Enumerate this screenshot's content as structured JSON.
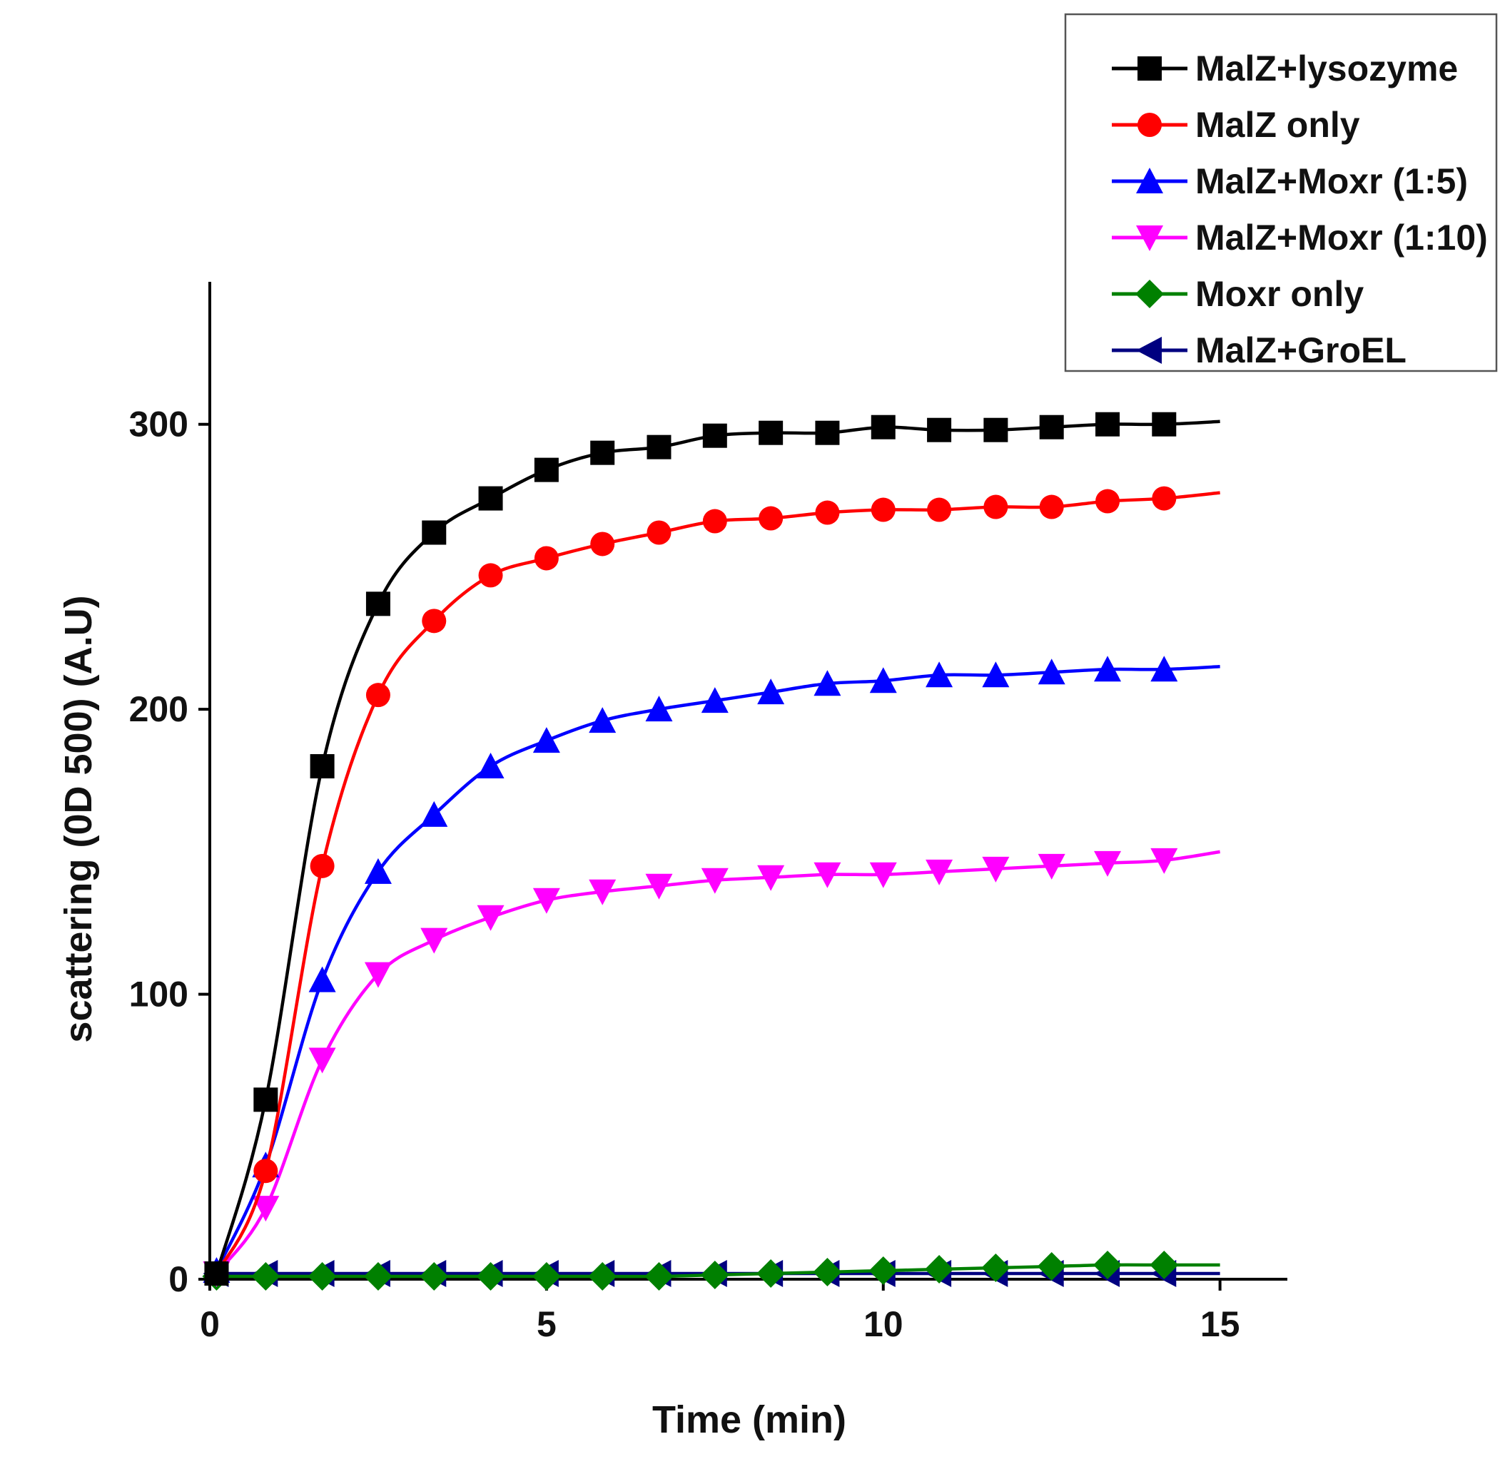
{
  "chart_data": {
    "type": "line",
    "xlabel": "Time (min)",
    "ylabel": "scattering (0D 500) (A.U)",
    "xlim": [
      0,
      16
    ],
    "ylim": [
      0,
      350
    ],
    "xticks": [
      0,
      5,
      10,
      15
    ],
    "yticks": [
      0,
      100,
      200,
      300
    ],
    "grid": false,
    "legend_position": "top-right",
    "x": [
      0.1,
      0.83,
      1.67,
      2.5,
      3.33,
      4.17,
      5.0,
      5.83,
      6.67,
      7.5,
      8.33,
      9.17,
      10.0,
      10.83,
      11.67,
      12.5,
      13.33,
      14.17,
      15.0
    ],
    "series": [
      {
        "name": "MalZ+lysozyme",
        "color": "#000000",
        "marker": "square",
        "values": [
          2,
          63,
          180,
          237,
          262,
          274,
          284,
          290,
          292,
          296,
          297,
          297,
          299,
          298,
          298,
          299,
          300,
          300,
          301
        ]
      },
      {
        "name": "MalZ only",
        "color": "#ff0000",
        "marker": "circle",
        "values": [
          2,
          38,
          145,
          205,
          231,
          247,
          253,
          258,
          262,
          266,
          267,
          269,
          270,
          270,
          271,
          271,
          273,
          274,
          276
        ]
      },
      {
        "name": "MalZ+Moxr (1:5)",
        "color": "#0000ff",
        "marker": "triangle-up",
        "values": [
          3,
          40,
          105,
          143,
          163,
          180,
          189,
          196,
          200,
          203,
          206,
          209,
          210,
          212,
          212,
          213,
          214,
          214,
          215
        ]
      },
      {
        "name": "MalZ+Moxr (1:10)",
        "color": "#ff00ff",
        "marker": "triangle-down",
        "values": [
          2,
          25,
          77,
          107,
          119,
          127,
          133,
          136,
          138,
          140,
          141,
          142,
          142,
          143,
          144,
          145,
          146,
          147,
          150
        ]
      },
      {
        "name": "Moxr only",
        "color": "#008000",
        "marker": "diamond",
        "values": [
          1,
          1,
          1,
          1,
          1,
          1,
          1,
          1,
          1,
          1.5,
          2,
          2.5,
          3,
          3.5,
          4,
          4.5,
          5,
          5,
          5
        ]
      },
      {
        "name": "MalZ+GroEL",
        "color": "#000080",
        "marker": "triangle-left",
        "values": [
          2,
          2,
          2,
          2,
          2,
          2,
          2,
          2,
          2,
          2,
          2,
          2,
          2,
          2,
          2,
          2,
          2,
          2,
          2
        ]
      }
    ]
  }
}
